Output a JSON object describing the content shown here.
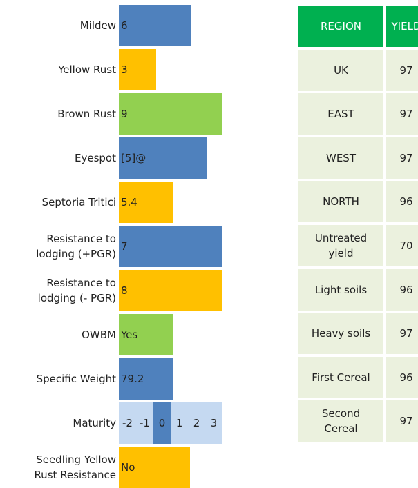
{
  "traits": [
    {
      "label": "Mildew",
      "value": "6"
    },
    {
      "label": "Yellow Rust",
      "value": "3"
    },
    {
      "label": "Brown Rust",
      "value": "9"
    },
    {
      "label": "Eyespot",
      "value": "[5]@"
    },
    {
      "label": "Septoria Tritici",
      "value": "5.4"
    },
    {
      "label": "Resistance to\nlodging (+PGR)",
      "value": "7"
    },
    {
      "label": "Resistance to\nlodging (- PGR)",
      "value": "8"
    },
    {
      "label": "OWBM",
      "value": "Yes"
    },
    {
      "label": "Specific Weight",
      "value": "79.2"
    },
    {
      "label": "Maturity",
      "scale": [
        -2,
        -1,
        0,
        1,
        2,
        3
      ],
      "highlight": 0
    },
    {
      "label": "Seedling Yellow\nRust Resistance",
      "value": "No"
    }
  ],
  "table": {
    "header": [
      "REGION",
      "YIELD"
    ],
    "rows": [
      [
        "UK",
        97
      ],
      [
        "EAST",
        97
      ],
      [
        "WEST",
        97
      ],
      [
        "NORTH",
        96
      ],
      [
        "Untreated\nyield",
        70
      ],
      [
        "Light soils",
        96
      ],
      [
        "Heavy soils",
        97
      ],
      [
        "First Cereal",
        96
      ],
      [
        "Second\nCereal",
        97
      ]
    ]
  }
}
